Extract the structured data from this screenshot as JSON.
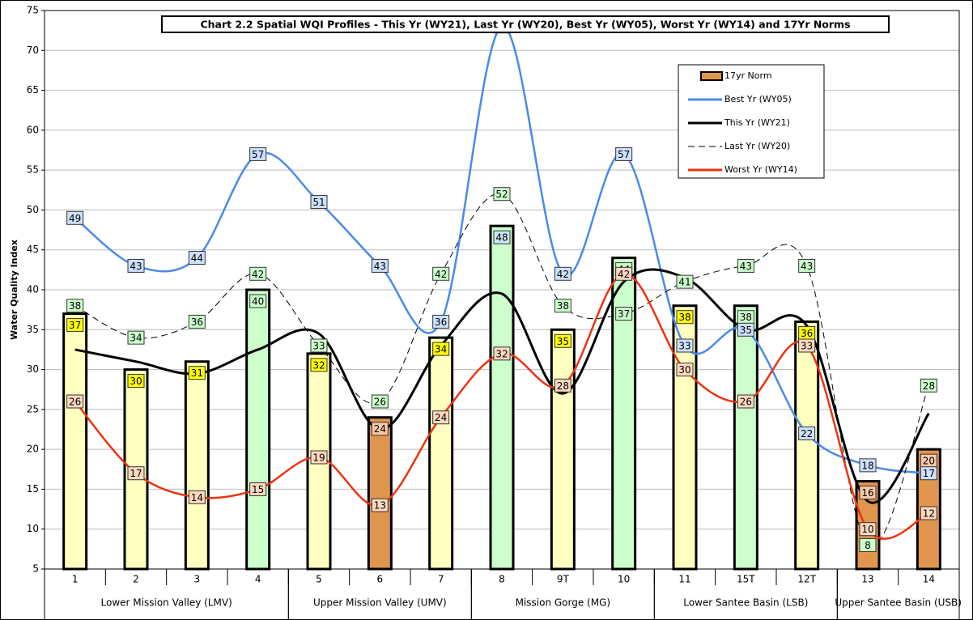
{
  "chart_data": {
    "type": "combo",
    "title": "Chart 2.2 Spatial WQI Profiles - This Yr (WY21), Last Yr (WY20), Best Yr (WY05), Worst Yr (WY14) and 17Yr Norms",
    "y_label": "Water Quality Index",
    "categories": [
      "1",
      "2",
      "3",
      "4",
      "5",
      "6",
      "7",
      "8",
      "9T",
      "10",
      "11",
      "15T",
      "12T",
      "13",
      "14"
    ],
    "groups": [
      {
        "label": "Lower Mission Valley (LMV)",
        "categories": [
          "1",
          "2",
          "3",
          "4"
        ]
      },
      {
        "label": "Upper Mission Valley (UMV)",
        "categories": [
          "5",
          "6",
          "7"
        ]
      },
      {
        "label": "Mission Gorge (MG)",
        "categories": [
          "8",
          "9T",
          "10"
        ]
      },
      {
        "label": "Lower Santee Basin (LSB)",
        "categories": [
          "11",
          "15T",
          "12T"
        ]
      },
      {
        "label": "Upper Santee Basin (USB)",
        "categories": [
          "13",
          "14"
        ]
      }
    ],
    "ylim": [
      5,
      75
    ],
    "yticks": [
      5,
      10,
      15,
      20,
      25,
      30,
      35,
      40,
      45,
      50,
      55,
      60,
      65,
      70,
      75
    ],
    "grid": true,
    "series": [
      {
        "name": "17yr Norm",
        "type": "bar",
        "color": "#e0954f",
        "colors": [
          "#ffffc0",
          "#ffffc0",
          "#ffffc0",
          "#ccffcc",
          "#ffffc0",
          "#e0954f",
          "#ffffc0",
          "#ccffcc",
          "#ffffc0",
          "#ccffcc",
          "#ffffc0",
          "#ccffcc",
          "#ffffc0",
          "#e0954f",
          "#e0954f"
        ],
        "label_colors": [
          "#ffff00",
          "#ffff00",
          "#ffff00",
          "#ccffcc",
          "#ffff00",
          "#f8c8a8",
          "#ffff00",
          "#cce8f8",
          "#ffff00",
          "#ccffcc",
          "#ffff00",
          "#ccffcc",
          "#ffff00",
          "#f8c8a8",
          "#f8c8a8"
        ],
        "values": [
          37,
          30,
          31,
          40,
          32,
          24,
          34,
          48,
          35,
          44,
          38,
          38,
          36,
          16,
          20
        ]
      },
      {
        "name": "Best Yr (WY05)",
        "type": "line",
        "color": "#4a8ae8",
        "label_color": "#cce0ff",
        "dash": false,
        "values": [
          49,
          43,
          44,
          57,
          51,
          43,
          36,
          73,
          42,
          57,
          33,
          35,
          22,
          18,
          17
        ]
      },
      {
        "name": "This Yr (WY21)",
        "type": "line",
        "color": "#000000",
        "dash": false,
        "values": [
          32.5,
          31,
          29.5,
          32.5,
          34.5,
          22.5,
          33,
          39.5,
          27,
          41,
          41.5,
          35,
          35.5,
          13.5,
          24.5
        ]
      },
      {
        "name": "Last Yr (WY20)",
        "type": "line",
        "color": "#000000",
        "label_color": "#ccffcc",
        "dash": true,
        "values": [
          38,
          34,
          36,
          42,
          33,
          26,
          42,
          52,
          38,
          37,
          41,
          43,
          43,
          8,
          28
        ]
      },
      {
        "name": "Worst Yr (WY14)",
        "type": "line",
        "color": "#ee3311",
        "label_color": "#ffd8c0",
        "dash": false,
        "values": [
          26,
          17,
          14,
          15,
          19,
          13,
          24,
          32,
          28,
          42,
          30,
          26,
          33,
          10,
          12
        ]
      }
    ]
  }
}
